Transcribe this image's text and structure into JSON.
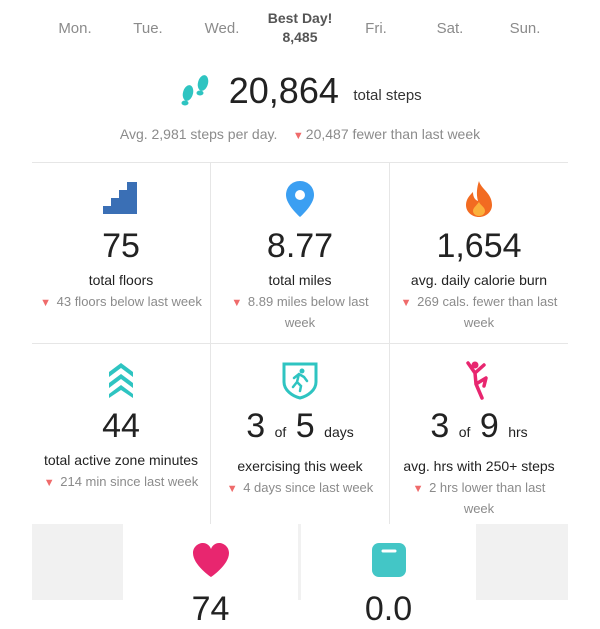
{
  "week": {
    "days": [
      "Mon.",
      "Tue.",
      "Wed.",
      "Fri.",
      "Sat.",
      "Sun."
    ],
    "best_label": "Best Day!",
    "best_value": "8,485"
  },
  "steps": {
    "icon": "footsteps-icon",
    "value": "20,864",
    "unit": "total steps",
    "average": "Avg. 2,981 steps per day.",
    "compare": "20,487 fewer than last week"
  },
  "stats": [
    {
      "icon": "stairs-icon",
      "value": "75",
      "label": "total floors",
      "compare": "43 floors below last week"
    },
    {
      "icon": "location-pin-icon",
      "value": "8.77",
      "label": "total miles",
      "compare": "8.89 miles below last week"
    },
    {
      "icon": "flame-icon",
      "value": "1,654",
      "label": "avg. daily calorie burn",
      "compare": "269 cals. fewer than last week"
    },
    {
      "icon": "chevrons-up-icon",
      "value": "44",
      "label": "total active zone minutes",
      "compare": "214 min since last week"
    },
    {
      "icon": "runner-badge-icon",
      "value_a": "3",
      "of": "of",
      "value_b": "5",
      "unit": "days",
      "label": "exercising this week",
      "compare": "4 days since last week"
    },
    {
      "icon": "person-pose-icon",
      "value_a": "3",
      "of": "of",
      "value_b": "9",
      "unit": "hrs",
      "label": "avg. hrs with 250+ steps",
      "compare": "2 hrs lower than last week"
    }
  ],
  "bottom": [
    {
      "icon": "heart-icon",
      "value": "74"
    },
    {
      "icon": "scale-icon",
      "value": "0.0"
    }
  ],
  "colors": {
    "down": "#ef6b6b",
    "floors": "#3a6fb5",
    "miles": "#3b9ff2",
    "calories": "#f26b21",
    "azm": "#2ec4c1",
    "heart": "#e8266f",
    "scale": "#43c6c6"
  }
}
